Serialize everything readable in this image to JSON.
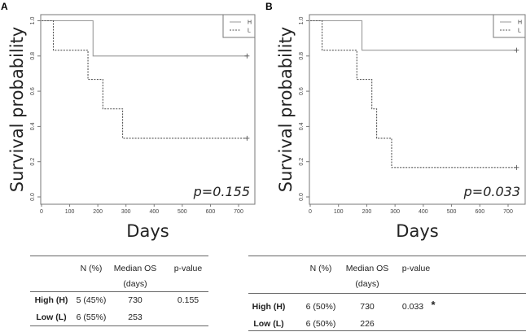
{
  "chart_data": [
    {
      "panel_label": "A",
      "type": "line",
      "subtype": "kaplan-meier-step",
      "xlabel": "Days",
      "ylabel": "Survival probability",
      "xlim": [
        0,
        750
      ],
      "ylim": [
        0,
        1
      ],
      "xticks": [
        "0",
        "100",
        "200",
        "300",
        "400",
        "500",
        "600",
        "700"
      ],
      "yticks": [
        "0.0",
        "0.2",
        "0.4",
        "0.6",
        "0.8",
        "1.0"
      ],
      "legend": {
        "placement": "top-right",
        "entries": [
          "H",
          "L"
        ]
      },
      "annotation": "p=0.155",
      "series": [
        {
          "name": "H",
          "style": "solid",
          "x": [
            0,
            183,
            730
          ],
          "y": [
            1.0,
            0.8,
            0.8
          ],
          "censored": [
            [
              730,
              0.8
            ]
          ]
        },
        {
          "name": "L",
          "style": "dashed",
          "x": [
            0,
            42,
            165,
            218,
            288,
            730
          ],
          "y": [
            1.0,
            0.833,
            0.667,
            0.5,
            0.333,
            0.333
          ],
          "censored": [
            [
              730,
              0.333
            ]
          ]
        }
      ]
    },
    {
      "panel_label": "B",
      "type": "line",
      "subtype": "kaplan-meier-step",
      "xlabel": "Days",
      "ylabel": "Survival probability",
      "xlim": [
        0,
        750
      ],
      "ylim": [
        0,
        1
      ],
      "xticks": [
        "0",
        "100",
        "200",
        "300",
        "400",
        "500",
        "600",
        "700"
      ],
      "yticks": [
        "0.0",
        "0.2",
        "0.4",
        "0.6",
        "0.8",
        "1.0"
      ],
      "legend": {
        "placement": "top-right",
        "entries": [
          "H",
          "L"
        ]
      },
      "annotation": "p=0.033",
      "series": [
        {
          "name": "H",
          "style": "solid",
          "x": [
            0,
            183,
            730
          ],
          "y": [
            1.0,
            0.833,
            0.833
          ],
          "censored": [
            [
              730,
              0.833
            ]
          ]
        },
        {
          "name": "L",
          "style": "dashed",
          "x": [
            0,
            42,
            165,
            218,
            235,
            288,
            730
          ],
          "y": [
            1.0,
            0.833,
            0.667,
            0.5,
            0.333,
            0.167,
            0.167
          ],
          "censored": [
            [
              730,
              0.167
            ]
          ]
        }
      ]
    }
  ],
  "tables": [
    {
      "headers": [
        "N (%)",
        "Median OS",
        "p-value"
      ],
      "header_sub": "(days)",
      "rows": [
        {
          "label": "High (H)",
          "n": "5 (45%)",
          "median": "730",
          "p": "0.155",
          "mark": ""
        },
        {
          "label": "Low (L)",
          "n": "6 (55%)",
          "median": "253",
          "p": "",
          "mark": ""
        }
      ]
    },
    {
      "headers": [
        "N (%)",
        "Median OS",
        "p-value"
      ],
      "header_sub": "(days)",
      "rows": [
        {
          "label": "High (H)",
          "n": "6 (50%)",
          "median": "730",
          "p": "0.033",
          "mark": "*"
        },
        {
          "label": "Low (L)",
          "n": "6 (50%)",
          "median": "226",
          "p": "",
          "mark": ""
        }
      ]
    }
  ]
}
